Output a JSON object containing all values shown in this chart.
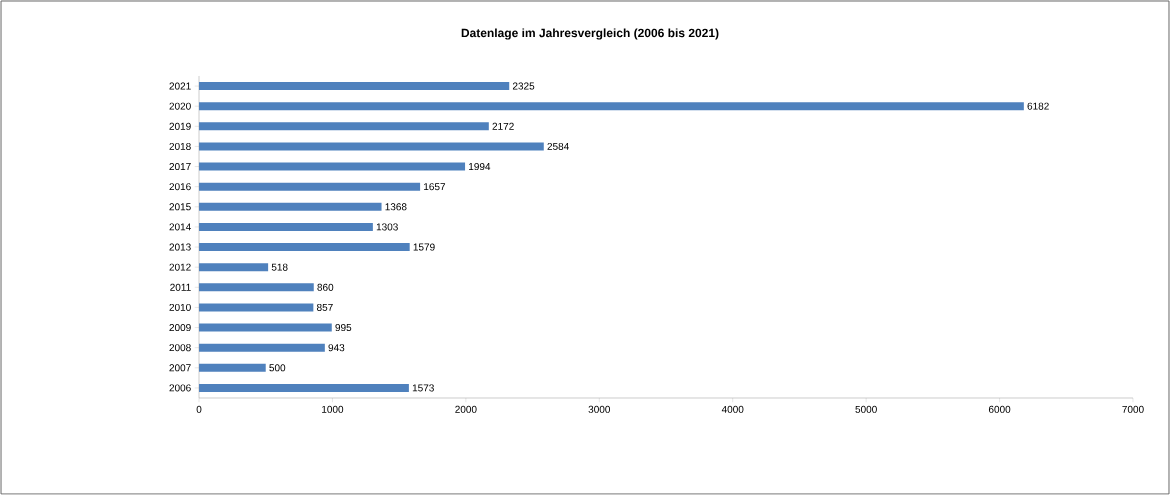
{
  "chart_data": {
    "type": "bar",
    "orientation": "horizontal",
    "title": "Datenlage im Jahresvergleich (2006 bis 2021)",
    "categories": [
      "2021",
      "2020",
      "2019",
      "2018",
      "2017",
      "2016",
      "2015",
      "2014",
      "2013",
      "2012",
      "2011",
      "2010",
      "2009",
      "2008",
      "2007",
      "2006"
    ],
    "values": [
      2325,
      6182,
      2172,
      2584,
      1994,
      1657,
      1368,
      1303,
      1579,
      518,
      860,
      857,
      995,
      943,
      500,
      1573
    ],
    "color": "#4f81bd",
    "xlim": [
      0,
      7000
    ],
    "xticks": [
      0,
      1000,
      2000,
      3000,
      4000,
      5000,
      6000,
      7000
    ],
    "data_labels": true
  }
}
